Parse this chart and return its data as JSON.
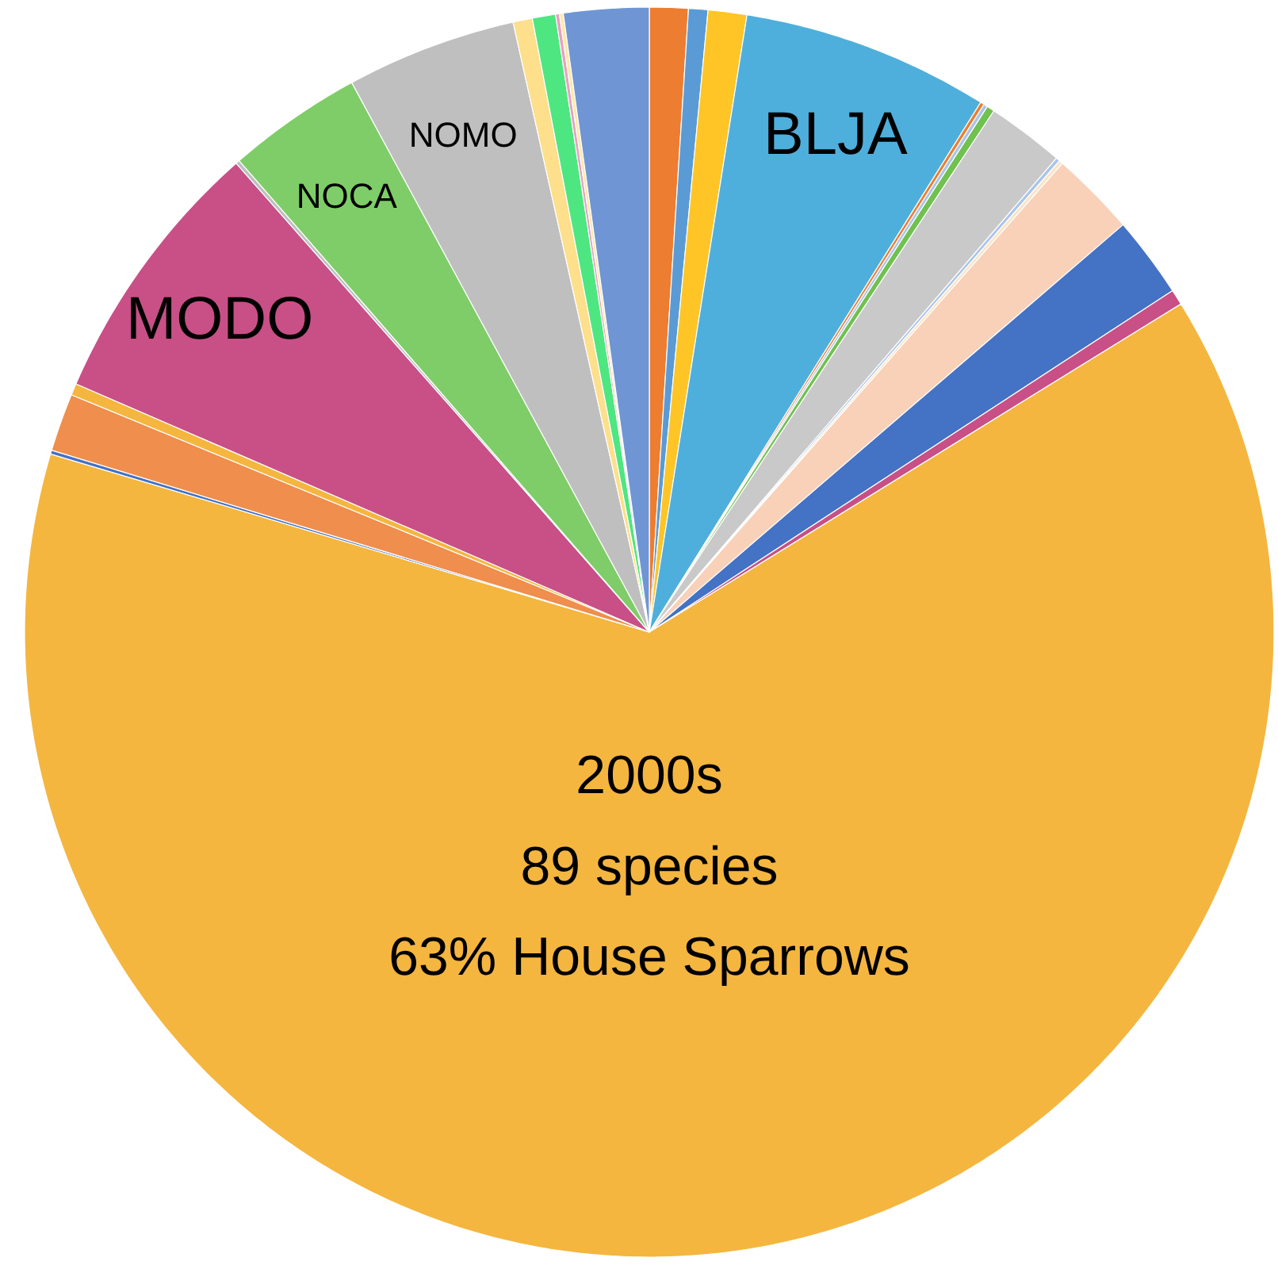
{
  "chart_data": {
    "type": "pie",
    "categories": [
      null,
      null,
      null,
      "BLJA",
      null,
      null,
      null,
      null,
      null,
      null,
      null,
      null,
      null,
      null,
      null,
      null,
      null,
      "MODO",
      null,
      "NOCA",
      "NOMO",
      null,
      null,
      null,
      null,
      null
    ],
    "values": [
      1.0,
      0.5,
      1.0,
      6.4,
      0.1,
      0.1,
      0.2,
      2.0,
      0.1,
      0.1,
      2.2,
      2.1,
      0.4,
      63.4,
      0.1,
      1.5,
      0.3,
      7.0,
      0.1,
      3.5,
      4.4,
      0.5,
      0.6,
      0.1,
      0.1,
      2.2
    ],
    "colors": [
      "#ed7d31",
      "#5b9bd5",
      "#ffc527",
      "#4fafdc",
      "#ed7d31",
      "#a9c4eb",
      "#70c14f",
      "#c9c9c9",
      "#a9c4eb",
      "#fde4c8",
      "#f8d1b8",
      "#4472c4",
      "#c85086",
      "#f4b63f",
      "#4472c4",
      "#ef8e4d",
      "#f4b63f",
      "#c85086",
      "#bfbfbf",
      "#7fcd68",
      "#bfbfbf",
      "#fddf8c",
      "#4ee680",
      "#e8a0c0",
      "#fde9a8",
      "#6f95d4"
    ],
    "annotations": [
      "2000s",
      "89 species",
      "63% House Sparrows"
    ]
  }
}
